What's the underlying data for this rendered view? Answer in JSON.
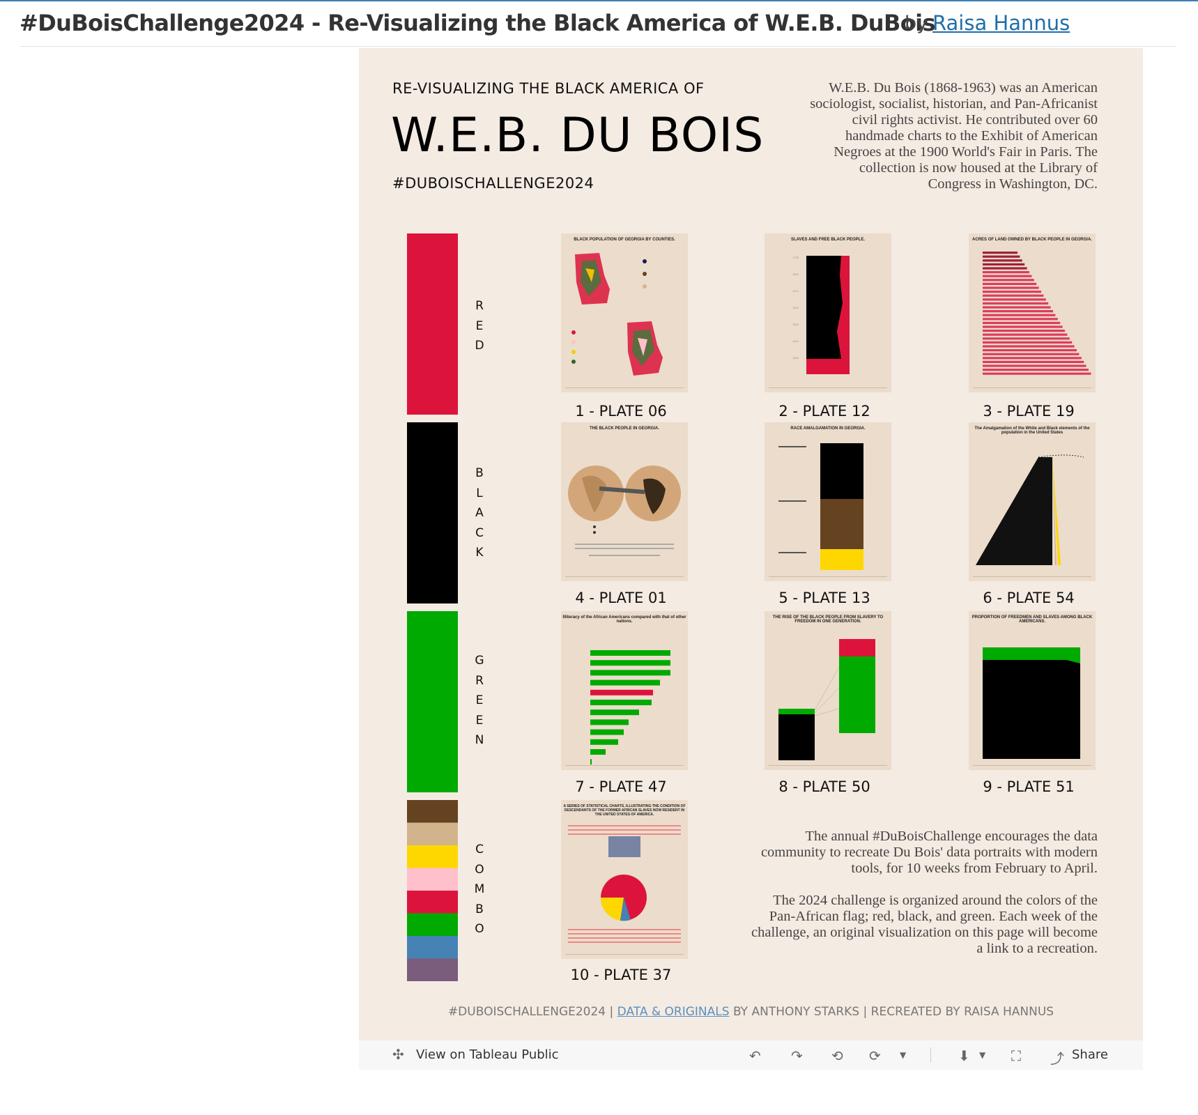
{
  "header": {
    "title": "#DuBoisChallenge2024 - Re-Visualizing the Black America of W.E.B. DuBois",
    "by": "by",
    "author": "Raisa Hannus"
  },
  "viz": {
    "pretitle": "RE-VISUALIZING THE BLACK AMERICA OF",
    "title": "W.E.B. DU BOIS",
    "hashtag": "#DUBOISCHALLENGE2024",
    "intro": "W.E.B. Du Bois (1868-1963) was an American sociologist, socialist, historian, and Pan-Africanist civil rights activist. He contributed over 60 handmade charts to the Exhibit of American Negroes at the 1900 World's Fair in Paris. The collection is now housed at the Library of Congress in Washington, DC.",
    "outro1": "The annual #DuBoisChallenge encourages the data community to recreate Du Bois' data portraits with modern tools, for 10 weeks from February to April.",
    "outro2": "The 2024 challenge is organized around the colors of the Pan-African flag; red, black, and green. Each week of the challenge, an original visualization on this page will become a link to a recreation.",
    "credit_a": "#DUBOISCHALLENGE2024 |",
    "credit_link": "DATA & ORIGINALS",
    "credit_b": "BY ANTHONY STARKS | RECREATED BY RAISA HANNUS"
  },
  "color_groups": [
    {
      "label": "RED",
      "colors": [
        "#dc143c"
      ]
    },
    {
      "label": "BLACK",
      "colors": [
        "#000000"
      ]
    },
    {
      "label": "GREEN",
      "colors": [
        "#00aa00"
      ]
    },
    {
      "label": "COMBO",
      "colors": [
        "#654321",
        "#d2b48c",
        "#ffd700",
        "#ffc0cb",
        "#dc143c",
        "#00aa00",
        "#4682b4",
        "#7a5c7d"
      ]
    }
  ],
  "plates": [
    {
      "label": "1 - PLATE 06",
      "thumb_title": "BLACK POPULATION OF GEORGIA BY COUNTIES."
    },
    {
      "label": "2 - PLATE 12",
      "thumb_title": "SLAVES AND FREE BLACK PEOPLE."
    },
    {
      "label": "3 - PLATE 19",
      "thumb_title": "ACRES OF LAND OWNED BY BLACK PEOPLE IN GEORGIA."
    },
    {
      "label": "4 - PLATE 01",
      "thumb_title": "THE BLACK PEOPLE IN GEORGIA."
    },
    {
      "label": "5 - PLATE 13",
      "thumb_title": "RACE AMALGAMATION IN GEORGIA."
    },
    {
      "label": "6 - PLATE 54",
      "thumb_title": "The Amalgamation of the White and Black elements of the population in the United States"
    },
    {
      "label": "7 - PLATE 47",
      "thumb_title": "Illiteracy of the African Americans compared with that of other nations."
    },
    {
      "label": "8 - PLATE 50",
      "thumb_title": "THE RISE OF THE BLACK PEOPLE FROM SLAVERY TO FREEDOM IN ONE GENERATION."
    },
    {
      "label": "9 - PLATE 51",
      "thumb_title": "PROPORTION OF FREEDMEN AND SLAVES AMONG BLACK AMERICANS."
    },
    {
      "label": "10 - PLATE 37",
      "thumb_title": "A SERIES OF STATISTICAL CHARTS, ILLUSTRATING THE CONDITION OF DESCENDANTS OF THE FORMER AFRICAN SLAVES NOW RESIDENT IN THE UNITED STATES OF AMERICA."
    }
  ],
  "toolbar": {
    "view_label": "View on Tableau Public",
    "share_label": "Share"
  }
}
